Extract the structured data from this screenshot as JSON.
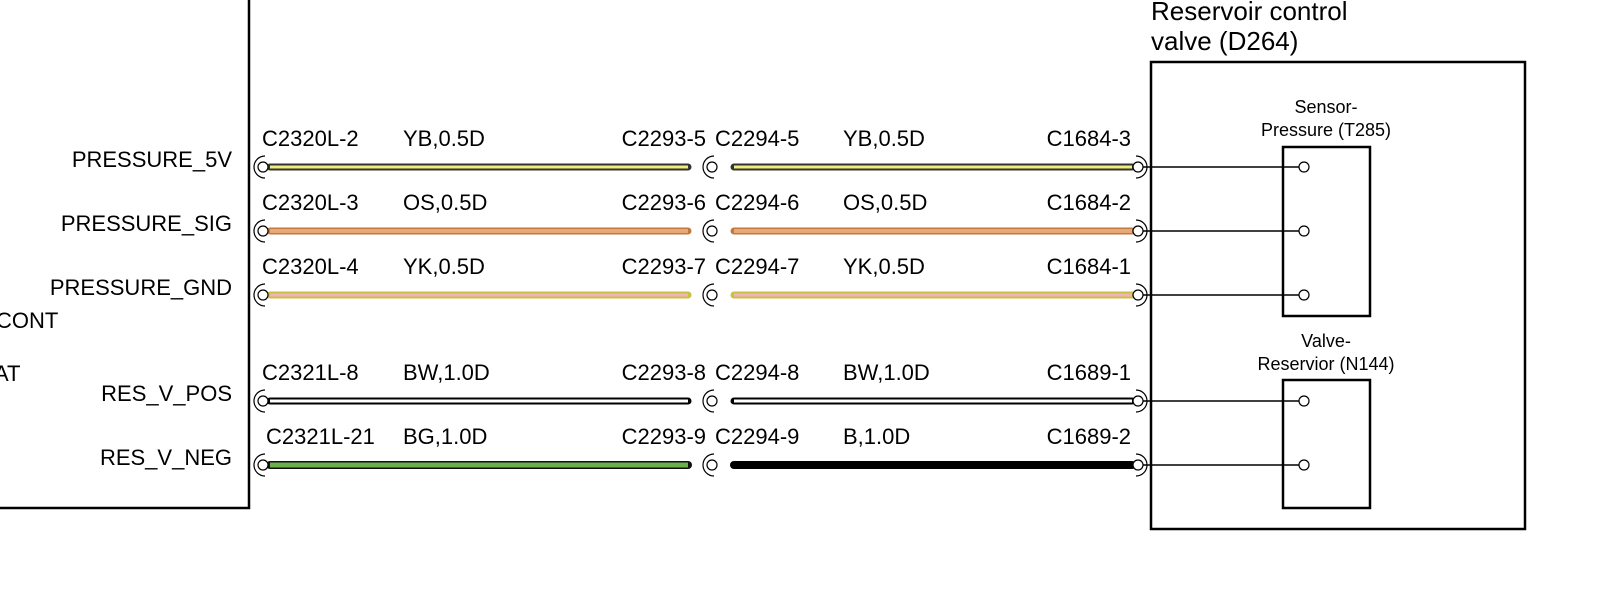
{
  "module_left": {
    "signals": [
      "PRESSURE_5V",
      "PRESSURE_SIG",
      "PRESSURE_GND",
      "RES_V_POS",
      "RES_V_NEG"
    ],
    "partial_labels": [
      "CONT",
      "AT"
    ]
  },
  "wires": [
    {
      "from": "C2320L-2",
      "from_label": "YB,0.5D",
      "mid_left": "C2293-5",
      "mid_right": "C2294-5",
      "to_label": "YB,0.5D",
      "to": "C1684-3"
    },
    {
      "from": "C2320L-3",
      "from_label": "OS,0.5D",
      "mid_left": "C2293-6",
      "mid_right": "C2294-6",
      "to_label": "OS,0.5D",
      "to": "C1684-2"
    },
    {
      "from": "C2320L-4",
      "from_label": "YK,0.5D",
      "mid_left": "C2293-7",
      "mid_right": "C2294-7",
      "to_label": "YK,0.5D",
      "to": "C1684-1"
    },
    {
      "from": "C2321L-8",
      "from_label": "BW,1.0D",
      "mid_left": "C2293-8",
      "mid_right": "C2294-8",
      "to_label": "BW,1.0D",
      "to": "C1689-1"
    },
    {
      "from": "C2321L-21",
      "from_label": "BG,1.0D",
      "mid_left": "C2293-9",
      "mid_right": "C2294-9",
      "to_label": "B,1.0D",
      "to": "C1689-2"
    }
  ],
  "device": {
    "title_lines": [
      "Reservoir control",
      "valve (D264)"
    ],
    "components": [
      {
        "lines": [
          "Sensor-",
          "Pressure (T285)"
        ]
      },
      {
        "lines": [
          "Valve-",
          "Reservior (N144)"
        ]
      }
    ]
  }
}
